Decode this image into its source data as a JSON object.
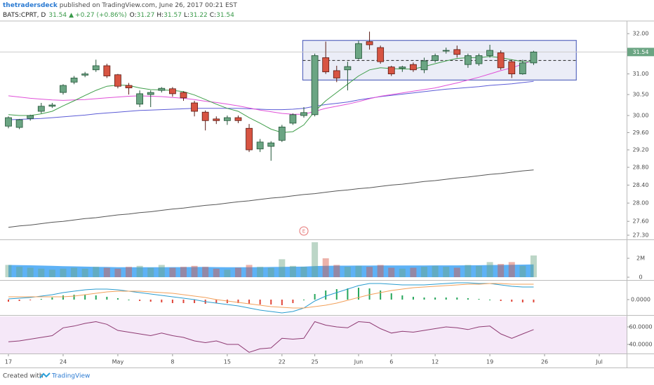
{
  "header": {
    "author": "thetradersdeck",
    "published": " published on TradingView.com, June 26, 2017 00:21 EST",
    "symbol": "BATS:CPRT, D",
    "last": "31.54",
    "arrow": "▲",
    "change": "+0.27 (+0.86%)",
    "ohlc": [
      [
        "O:",
        "31.27"
      ],
      [
        "H:",
        "31.57"
      ],
      [
        "L:",
        "31.22"
      ],
      [
        "C:",
        "31.54"
      ]
    ]
  },
  "footer": {
    "created": "Created with",
    "brand": "TradingView"
  },
  "chart_data": [
    {
      "type": "candlestick",
      "log_scale": true,
      "grid": false,
      "up_color": "#6ba583",
      "down_color": "#d75442",
      "up_border": "#225437",
      "down_border": "#5b1a13",
      "xlim": [
        -0.77,
        56.5
      ],
      "xticks": [
        {
          "value": 0,
          "label": "17"
        },
        {
          "value": 5,
          "label": "24"
        },
        {
          "value": 10,
          "label": "May"
        },
        {
          "value": 15,
          "label": "8"
        },
        {
          "value": 20,
          "label": "15"
        },
        {
          "value": 25,
          "label": "22"
        },
        {
          "value": 28,
          "label": "25"
        },
        {
          "value": 32,
          "label": "Jun"
        },
        {
          "value": 35,
          "label": "6"
        },
        {
          "value": 39,
          "label": "12"
        },
        {
          "value": 44,
          "label": "19"
        },
        {
          "value": 49,
          "label": "26"
        },
        {
          "value": 54,
          "label": "Jul"
        }
      ],
      "ylim": [
        27.21,
        32.32
      ],
      "yticks": [
        {
          "value": 27.3,
          "label": "27.30"
        },
        {
          "value": 27.6,
          "label": "27.60"
        },
        {
          "value": 28,
          "label": "28.00"
        },
        {
          "value": 28.4,
          "label": "28.40"
        },
        {
          "value": 28.8,
          "label": "28.80"
        },
        {
          "value": 29.2,
          "label": "29.20"
        },
        {
          "value": 29.6,
          "label": "29.60"
        },
        {
          "value": 30,
          "label": "30.00"
        },
        {
          "value": 30.5,
          "label": "30.50"
        },
        {
          "value": 31,
          "label": "31.00"
        },
        {
          "value": 32,
          "label": "32.00"
        }
      ],
      "open": [
        29.75,
        29.72,
        29.93,
        30.1,
        30.22,
        30.55,
        30.8,
        30.97,
        31.1,
        31.2,
        30.98,
        30.72,
        30.27,
        30.5,
        30.6,
        30.64,
        30.55,
        30.3,
        30.08,
        29.92,
        29.88,
        29.95,
        29.7,
        29.22,
        29.28,
        29.42,
        29.82,
        30.0,
        30.02,
        31.4,
        31.08,
        31.1,
        31.38,
        31.8,
        31.65,
        31.17,
        31.14,
        31.23,
        31.1,
        31.33,
        31.57,
        31.6,
        31.23,
        31.25,
        31.45,
        31.52,
        31.3,
        31.0,
        31.27
      ],
      "high": [
        29.98,
        29.92,
        30.02,
        30.3,
        30.3,
        30.75,
        30.95,
        31.05,
        31.35,
        31.25,
        31.0,
        30.78,
        30.6,
        30.6,
        30.68,
        30.68,
        30.58,
        30.35,
        30.12,
        29.98,
        30.0,
        30.0,
        29.8,
        29.45,
        29.4,
        29.78,
        30.05,
        30.2,
        31.5,
        31.8,
        31.2,
        31.3,
        31.82,
        32.05,
        31.7,
        31.2,
        31.2,
        31.28,
        31.4,
        31.5,
        31.65,
        31.7,
        31.5,
        31.5,
        31.72,
        31.58,
        31.35,
        31.35,
        31.57
      ],
      "low": [
        29.7,
        29.68,
        29.88,
        30.05,
        30.18,
        30.5,
        30.75,
        30.92,
        31.05,
        30.9,
        30.65,
        30.5,
        30.2,
        30.2,
        30.55,
        30.45,
        30.35,
        29.98,
        29.65,
        29.8,
        29.78,
        29.82,
        29.15,
        29.15,
        28.95,
        29.38,
        29.78,
        29.95,
        29.98,
        31.0,
        30.8,
        30.6,
        31.35,
        31.6,
        31.25,
        30.95,
        31.05,
        31.05,
        31.02,
        31.28,
        31.5,
        31.4,
        31.15,
        31.2,
        31.4,
        31.1,
        30.9,
        30.98,
        31.22
      ],
      "close": [
        29.95,
        29.9,
        30.0,
        30.22,
        30.25,
        30.72,
        30.9,
        31.0,
        31.2,
        30.95,
        30.7,
        30.66,
        30.52,
        30.55,
        30.65,
        30.52,
        30.42,
        30.1,
        29.88,
        29.88,
        29.95,
        29.88,
        29.2,
        29.38,
        29.36,
        29.73,
        30.02,
        30.07,
        31.45,
        31.05,
        30.9,
        31.18,
        31.75,
        31.72,
        31.3,
        31.0,
        31.17,
        31.1,
        31.32,
        31.45,
        31.58,
        31.48,
        31.45,
        31.45,
        31.58,
        31.15,
        31.0,
        31.27,
        31.54
      ],
      "overlays": [
        {
          "color": "#555555",
          "values": [
            27.47,
            27.5,
            27.52,
            27.55,
            27.58,
            27.6,
            27.63,
            27.66,
            27.68,
            27.71,
            27.74,
            27.76,
            27.79,
            27.81,
            27.84,
            27.87,
            27.89,
            27.92,
            27.95,
            27.97,
            28.0,
            28.03,
            28.05,
            28.08,
            28.11,
            28.13,
            28.16,
            28.19,
            28.21,
            28.24,
            28.27,
            28.29,
            28.32,
            28.34,
            28.37,
            28.4,
            28.42,
            28.45,
            28.48,
            28.5,
            28.53,
            28.56,
            28.58,
            28.61,
            28.64,
            28.66,
            28.69,
            28.72,
            28.74
          ]
        },
        {
          "color": "#5b5bd6",
          "values": [
            29.9,
            29.91,
            29.92,
            29.93,
            29.95,
            29.97,
            29.99,
            30.01,
            30.04,
            30.06,
            30.08,
            30.1,
            30.12,
            30.13,
            30.14,
            30.15,
            30.16,
            30.17,
            30.17,
            30.17,
            30.17,
            30.17,
            30.16,
            30.15,
            30.14,
            30.14,
            30.15,
            30.17,
            30.22,
            30.26,
            30.29,
            30.32,
            30.37,
            30.41,
            30.45,
            30.48,
            30.51,
            30.54,
            30.57,
            30.6,
            30.63,
            30.65,
            30.67,
            30.69,
            30.72,
            30.74,
            30.76,
            30.79,
            30.82
          ]
        },
        {
          "color": "#e050d8",
          "values": [
            30.47,
            30.44,
            30.41,
            30.39,
            30.37,
            30.36,
            30.37,
            30.38,
            30.4,
            30.42,
            30.44,
            30.46,
            30.47,
            30.46,
            30.45,
            30.43,
            30.41,
            30.38,
            30.34,
            30.31,
            30.27,
            30.23,
            30.18,
            30.13,
            30.09,
            30.05,
            30.03,
            30.03,
            30.1,
            30.17,
            30.22,
            30.27,
            30.33,
            30.4,
            30.46,
            30.5,
            30.54,
            30.58,
            30.62,
            30.66,
            30.72,
            30.78,
            30.85,
            30.92,
            31.0,
            31.08,
            31.15,
            31.24,
            31.34
          ]
        },
        {
          "color": "#3f9e4a",
          "values": [
            30.02,
            30.0,
            30.0,
            30.04,
            30.1,
            30.23,
            30.35,
            30.48,
            30.6,
            30.7,
            30.73,
            30.72,
            30.66,
            30.62,
            30.61,
            30.6,
            30.57,
            30.49,
            30.38,
            30.27,
            30.17,
            30.1,
            29.95,
            29.82,
            29.68,
            29.6,
            29.62,
            29.78,
            30.1,
            30.35,
            30.55,
            30.75,
            30.95,
            31.1,
            31.15,
            31.13,
            31.12,
            31.12,
            31.18,
            31.25,
            31.32,
            31.38,
            31.4,
            31.4,
            31.43,
            31.4,
            31.35,
            31.3,
            31.3
          ]
        }
      ],
      "range_box": {
        "start": 26.9,
        "end": 51.9,
        "low": 30.85,
        "high": 31.83,
        "mid": 31.33,
        "color": "#5c6bc0"
      },
      "last_price": {
        "value": 31.54,
        "label": "31.54"
      },
      "events": [
        {
          "index": 27,
          "label": "E",
          "color": "#e57373"
        }
      ]
    },
    {
      "type": "volume",
      "color": "#42a5f5",
      "ylim": [
        -296000,
        3926000
      ],
      "yticks": [
        0,
        {
          "value": 2000000,
          "label": "2M"
        }
      ],
      "values": [
        1300000,
        1100000,
        1000000,
        900000,
        800000,
        900000,
        1000000,
        900000,
        1100000,
        1000000,
        900000,
        1100000,
        1200000,
        1000000,
        1300000,
        1000000,
        1100000,
        1200000,
        1100000,
        900000,
        800000,
        1000000,
        1300000,
        1100000,
        1000000,
        1900000,
        1200000,
        1100000,
        3700000,
        2000000,
        1300000,
        1100000,
        1200000,
        1100000,
        1300000,
        1000000,
        900000,
        1000000,
        1100000,
        1200000,
        1100000,
        1000000,
        1300000,
        1200000,
        1600000,
        1400000,
        1600000,
        1200000,
        2300000
      ],
      "average": [
        1300000,
        1280000,
        1260000,
        1230000,
        1200000,
        1170000,
        1150000,
        1120000,
        1100000,
        1080000,
        1060000,
        1050000,
        1050000,
        1050000,
        1060000,
        1070000,
        1070000,
        1080000,
        1080000,
        1070000,
        1060000,
        1050000,
        1060000,
        1070000,
        1080000,
        1100000,
        1110000,
        1120000,
        1180000,
        1210000,
        1220000,
        1220000,
        1230000,
        1230000,
        1240000,
        1240000,
        1240000,
        1240000,
        1240000,
        1250000,
        1250000,
        1250000,
        1260000,
        1270000,
        1290000,
        1300000,
        1320000,
        1330000,
        1350000
      ]
    },
    {
      "type": "macd",
      "up_color": "#26a65b",
      "down_color": "#e0463a",
      "macd_color": "#2a9ccf",
      "signal_color": "#f2a05a",
      "ylim": [
        -0.22,
        0.27
      ],
      "yticks": [
        {
          "value": 0,
          "label": "0.0000"
        }
      ],
      "histogram": [
        -0.03,
        -0.02,
        -0.01,
        0.01,
        0.03,
        0.06,
        0.07,
        0.07,
        0.06,
        0.04,
        0.02,
        0.0,
        -0.02,
        -0.03,
        -0.04,
        -0.05,
        -0.05,
        -0.05,
        -0.06,
        -0.05,
        -0.05,
        -0.05,
        -0.06,
        -0.07,
        -0.07,
        -0.08,
        -0.05,
        0.0,
        0.08,
        0.13,
        0.15,
        0.16,
        0.17,
        0.16,
        0.13,
        0.09,
        0.06,
        0.04,
        0.03,
        0.03,
        0.03,
        0.03,
        0.02,
        0.01,
        0.0,
        -0.02,
        -0.03,
        -0.04,
        -0.04
      ],
      "macd": [
        0.01,
        0.02,
        0.03,
        0.05,
        0.07,
        0.1,
        0.12,
        0.14,
        0.15,
        0.15,
        0.14,
        0.12,
        0.1,
        0.08,
        0.06,
        0.04,
        0.02,
        0.0,
        -0.03,
        -0.05,
        -0.07,
        -0.09,
        -0.12,
        -0.15,
        -0.17,
        -0.19,
        -0.17,
        -0.12,
        -0.02,
        0.05,
        0.1,
        0.15,
        0.2,
        0.23,
        0.23,
        0.22,
        0.21,
        0.21,
        0.21,
        0.22,
        0.23,
        0.24,
        0.24,
        0.23,
        0.23,
        0.21,
        0.19,
        0.18,
        0.18
      ],
      "signal": [
        0.04,
        0.04,
        0.04,
        0.04,
        0.04,
        0.04,
        0.05,
        0.07,
        0.09,
        0.11,
        0.12,
        0.12,
        0.12,
        0.11,
        0.1,
        0.09,
        0.07,
        0.05,
        0.03,
        0.0,
        -0.02,
        -0.04,
        -0.06,
        -0.08,
        -0.1,
        -0.11,
        -0.12,
        -0.12,
        -0.1,
        -0.08,
        -0.05,
        -0.01,
        0.03,
        0.07,
        0.1,
        0.13,
        0.15,
        0.17,
        0.18,
        0.19,
        0.2,
        0.21,
        0.22,
        0.22,
        0.23,
        0.23,
        0.22,
        0.22,
        0.22
      ]
    },
    {
      "type": "line",
      "color": "#8e3a72",
      "band_color": "#f5e8f8",
      "ylim": [
        29.6,
        72.8
      ],
      "yticks": [
        {
          "value": 40,
          "label": "40.0000"
        },
        {
          "value": 60,
          "label": "60.0000"
        }
      ],
      "values": [
        43,
        44,
        46,
        48,
        50,
        59,
        61,
        64,
        66,
        63,
        56,
        54,
        52,
        50,
        53,
        50,
        48,
        44,
        42,
        44,
        40,
        40,
        31,
        35,
        36,
        47,
        46,
        47,
        66,
        62,
        60,
        59,
        66,
        65,
        58,
        53,
        55,
        54,
        56,
        58,
        60,
        59,
        57,
        60,
        61,
        52,
        47,
        52,
        57
      ]
    }
  ]
}
